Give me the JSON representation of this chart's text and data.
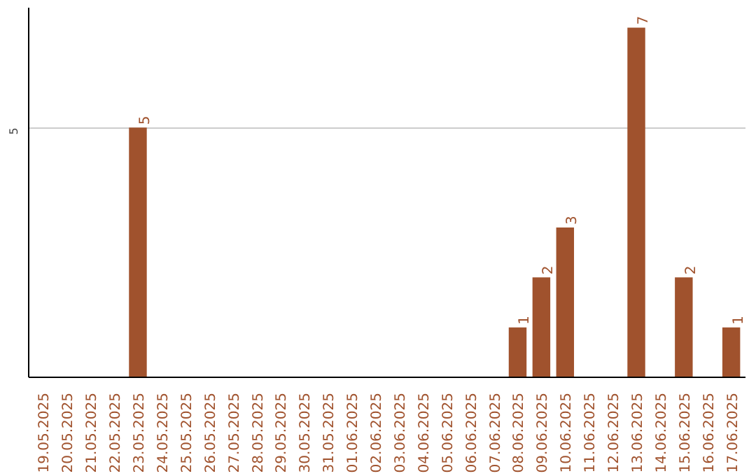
{
  "chart_data": {
    "type": "bar",
    "categories": [
      "19.05.2025",
      "20.05.2025",
      "21.05.2025",
      "22.05.2025",
      "23.05.2025",
      "24.05.2025",
      "25.05.2025",
      "26.05.2025",
      "27.05.2025",
      "28.05.2025",
      "29.05.2025",
      "30.05.2025",
      "31.05.2025",
      "01.06.2025",
      "02.06.2025",
      "03.06.2025",
      "04.06.2025",
      "05.06.2025",
      "06.06.2025",
      "07.06.2025",
      "08.06.2025",
      "09.06.2025",
      "10.06.2025",
      "11.06.2025",
      "12.06.2025",
      "13.06.2025",
      "14.06.2025",
      "15.06.2025",
      "16.06.2025",
      "17.06.2025"
    ],
    "values": [
      0,
      0,
      0,
      0,
      5,
      0,
      0,
      0,
      0,
      0,
      0,
      0,
      0,
      0,
      0,
      0,
      0,
      0,
      0,
      0,
      1,
      2,
      3,
      0,
      0,
      7,
      0,
      2,
      0,
      1
    ],
    "value_labels": [
      null,
      null,
      null,
      null,
      "5",
      null,
      null,
      null,
      null,
      null,
      null,
      null,
      null,
      null,
      null,
      null,
      null,
      null,
      null,
      null,
      "1",
      "2",
      "3",
      null,
      null,
      "7",
      null,
      "2",
      null,
      "1"
    ],
    "color": "#a0522d",
    "ylim": [
      0,
      7.4
    ],
    "yticks": [
      5
    ],
    "grid": "y"
  }
}
